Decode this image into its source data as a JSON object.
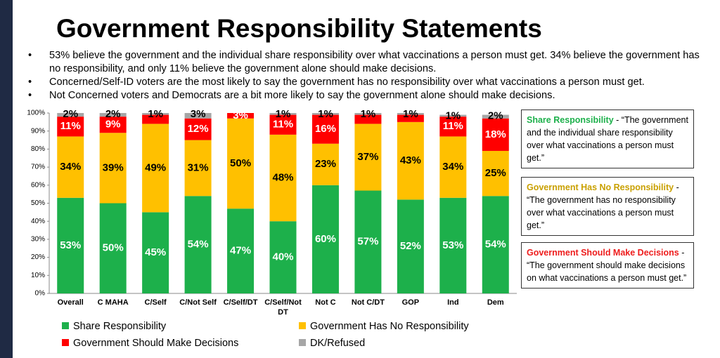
{
  "slide": {
    "title": "Government Responsibility Statements",
    "bullets": [
      "53% believe the government and the individual share responsibility over what vaccinations a person must get. 34% believe the government has no responsibility, and only 11% believe the government alone should make decisions.",
      "Concerned/Self-ID voters are the most likely to say the government has no responsibility over what vaccinations a person must get.",
      "Not Concerned voters and Democrats are a bit more likely to say the government alone should make decisions."
    ],
    "definitions": [
      {
        "label": "Share Responsibility",
        "text": "- “The government and the individual share responsibility over what vaccinations a person must get.”",
        "color": "#1db04b"
      },
      {
        "label": "Government Has No Responsibility",
        "text": "- “The government has no responsibility over what vaccinations a person must get.”",
        "color": "#c9a000"
      },
      {
        "label": "Government Should Make Decisions",
        "text": "- “The government should make decisions on what vaccinations a person must get.”",
        "color": "#ee1c1c"
      }
    ]
  },
  "chart_data": {
    "type": "stacked_bar",
    "categories": [
      "Overall",
      "C MAHA",
      "C/Self",
      "C/Not Self",
      "C/Self/DT",
      "C/Self/Not DT",
      "Not C",
      "Not C/DT",
      "GOP",
      "Ind",
      "Dem"
    ],
    "series": [
      {
        "name": "Share Responsibility",
        "color": "#1db04b",
        "label_color": "#ffffff",
        "values": [
          53,
          50,
          45,
          54,
          47,
          40,
          60,
          57,
          52,
          53,
          54
        ],
        "value_labels": [
          "53%",
          "50%",
          "45%",
          "54%",
          "47%",
          "40%",
          "60%",
          "57%",
          "52%",
          "53%",
          "54%"
        ]
      },
      {
        "name": "Government Has No Responsibility",
        "color": "#ffc000",
        "label_color": "#000000",
        "values": [
          34,
          39,
          49,
          31,
          50,
          48,
          23,
          37,
          43,
          34,
          25
        ],
        "value_labels": [
          "34%",
          "39%",
          "49%",
          "31%",
          "50%",
          "48%",
          "23%",
          "37%",
          "43%",
          "34%",
          "25%"
        ]
      },
      {
        "name": "Government Should Make Decisions",
        "color": "#ff0000",
        "label_color": "#ffffff",
        "values": [
          11,
          9,
          5,
          12,
          3,
          11,
          16,
          5,
          4,
          11,
          18
        ],
        "value_labels": [
          "11%",
          "9%",
          null,
          "12%",
          "3%",
          "11%",
          "16%",
          null,
          null,
          "11%",
          "18%"
        ]
      },
      {
        "name": "DK/Refused",
        "color": "#a6a6a6",
        "label_color": "#000000",
        "values": [
          2,
          2,
          1,
          3,
          0,
          1,
          1,
          1,
          1,
          1,
          2
        ],
        "value_labels": [
          "2%",
          "2%",
          "1%",
          "3%",
          null,
          "1%",
          "1%",
          "1%",
          "1%",
          "1%",
          "2%"
        ]
      }
    ],
    "ylim": [
      0,
      100
    ],
    "yticks": [
      {
        "value": 0,
        "label": "0%"
      },
      {
        "value": 10,
        "label": "10%"
      },
      {
        "value": 20,
        "label": "20%"
      },
      {
        "value": 30,
        "label": "30%"
      },
      {
        "value": 40,
        "label": "40%"
      },
      {
        "value": 50,
        "label": "50%"
      },
      {
        "value": 60,
        "label": "60%"
      },
      {
        "value": 70,
        "label": "70%"
      },
      {
        "value": 80,
        "label": "80%"
      },
      {
        "value": 90,
        "label": "90%"
      },
      {
        "value": 100,
        "label": "100%"
      }
    ],
    "grid": false,
    "legend": "bottom"
  }
}
